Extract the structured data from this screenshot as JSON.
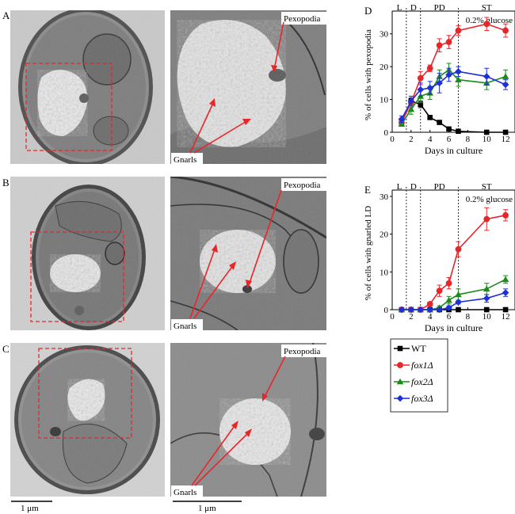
{
  "panels": {
    "A": {
      "letter": "A",
      "pexopodia": "Pexopodia",
      "gnarls": "Gnarls"
    },
    "B": {
      "letter": "B",
      "pexopodia": "Pexopodia",
      "gnarls": "Gnarls"
    },
    "C": {
      "letter": "C",
      "pexopodia": "Pexopodia",
      "gnarls": "Gnarls"
    }
  },
  "scale_bars": {
    "left": "1 μm",
    "right": "1 μm"
  },
  "chart_data": [
    {
      "id": "D",
      "type": "line",
      "letter": "D",
      "annotation": "0.2% glucose",
      "ylabel": "% of cells with pexopodia",
      "xlabel": "Days in culture",
      "xlim": [
        0,
        13
      ],
      "ylim": [
        0,
        35
      ],
      "xticks": [
        0,
        2,
        4,
        6,
        8,
        10,
        12
      ],
      "yticks": [
        0,
        10,
        20,
        30
      ],
      "phases": [
        "L",
        "D",
        "PD",
        "ST"
      ],
      "phase_boundaries": [
        1.5,
        3,
        7
      ],
      "series": [
        {
          "name": "WT",
          "color": "#000000",
          "marker": "square",
          "x": [
            1,
            2,
            3,
            4,
            5,
            6,
            7,
            10,
            12
          ],
          "y": [
            3,
            9.5,
            8.5,
            4.5,
            3,
            1,
            0.3,
            0,
            0
          ],
          "err": [
            0.5,
            0.8,
            1,
            0.6,
            0.5,
            0.3,
            0.2,
            0,
            0
          ]
        },
        {
          "name": "fox1Δ",
          "color": "#e8262a",
          "marker": "circle",
          "x": [
            1,
            2,
            3,
            4,
            5,
            6,
            7,
            10,
            12
          ],
          "y": [
            3,
            9,
            16.5,
            19.5,
            26.5,
            27.5,
            31,
            33,
            31
          ],
          "err": [
            1,
            1.5,
            2,
            1,
            2,
            2,
            1.5,
            2,
            2
          ]
        },
        {
          "name": "fox2Δ",
          "color": "#1a8a1a",
          "marker": "triangle",
          "x": [
            1,
            2,
            3,
            4,
            5,
            6,
            7,
            10,
            12
          ],
          "y": [
            2.5,
            7,
            11,
            12,
            17,
            19,
            16,
            15,
            17
          ],
          "err": [
            0.5,
            1.5,
            2,
            2,
            2,
            2,
            2,
            2,
            2
          ]
        },
        {
          "name": "fox3Δ",
          "color": "#1c2fd8",
          "marker": "diamond",
          "x": [
            1,
            2,
            3,
            4,
            5,
            6,
            7,
            10,
            12
          ],
          "y": [
            4,
            9.5,
            13,
            13.5,
            15,
            17.5,
            18.5,
            17,
            14.5
          ],
          "err": [
            1,
            1.5,
            2,
            2,
            3,
            2,
            1.5,
            2.5,
            1.5
          ]
        }
      ]
    },
    {
      "id": "E",
      "type": "line",
      "letter": "E",
      "annotation": "0.2% glucose",
      "ylabel": "% of cells with gnarled LD",
      "xlabel": "Days in culture",
      "xlim": [
        0,
        13
      ],
      "ylim": [
        0,
        30
      ],
      "xticks": [
        0,
        2,
        4,
        6,
        8,
        10,
        12
      ],
      "yticks": [
        0,
        10,
        20,
        30
      ],
      "phases": [
        "L",
        "D",
        "PD",
        "ST"
      ],
      "phase_boundaries": [
        1.5,
        3,
        7
      ],
      "series": [
        {
          "name": "WT",
          "color": "#000000",
          "marker": "square",
          "x": [
            1,
            2,
            3,
            4,
            5,
            6,
            7,
            10,
            12
          ],
          "y": [
            0,
            0,
            0,
            0,
            0,
            0,
            0,
            0,
            0
          ],
          "err": [
            0,
            0,
            0,
            0,
            0,
            0,
            0,
            0,
            0
          ]
        },
        {
          "name": "fox1Δ",
          "color": "#e8262a",
          "marker": "circle",
          "x": [
            1,
            2,
            3,
            4,
            5,
            6,
            7,
            10,
            12
          ],
          "y": [
            0,
            0,
            0,
            1.5,
            5,
            7,
            16,
            24,
            25
          ],
          "err": [
            0,
            0,
            0,
            0.5,
            1.5,
            1.5,
            2,
            3,
            1.5
          ]
        },
        {
          "name": "fox2Δ",
          "color": "#1a8a1a",
          "marker": "triangle",
          "x": [
            1,
            2,
            3,
            4,
            5,
            6,
            7,
            10,
            12
          ],
          "y": [
            0,
            0,
            0,
            0,
            0.5,
            2.5,
            4,
            5.5,
            8
          ],
          "err": [
            0,
            0,
            0,
            0,
            0.5,
            1,
            1.5,
            1.5,
            1
          ]
        },
        {
          "name": "fox3Δ",
          "color": "#1c2fd8",
          "marker": "diamond",
          "x": [
            1,
            2,
            3,
            4,
            5,
            6,
            7,
            10,
            12
          ],
          "y": [
            0,
            0,
            0,
            0,
            0,
            0.5,
            2,
            3,
            4.5
          ],
          "err": [
            0,
            0,
            0,
            0,
            0,
            0.5,
            0.5,
            1,
            1
          ]
        }
      ]
    }
  ],
  "legend": [
    {
      "label": "WT",
      "color": "#000000",
      "marker": "square"
    },
    {
      "label": "fox1Δ",
      "color": "#e8262a",
      "marker": "circle"
    },
    {
      "label": "fox2Δ",
      "color": "#1a8a1a",
      "marker": "triangle"
    },
    {
      "label": "fox3Δ",
      "color": "#1c2fd8",
      "marker": "diamond"
    }
  ]
}
